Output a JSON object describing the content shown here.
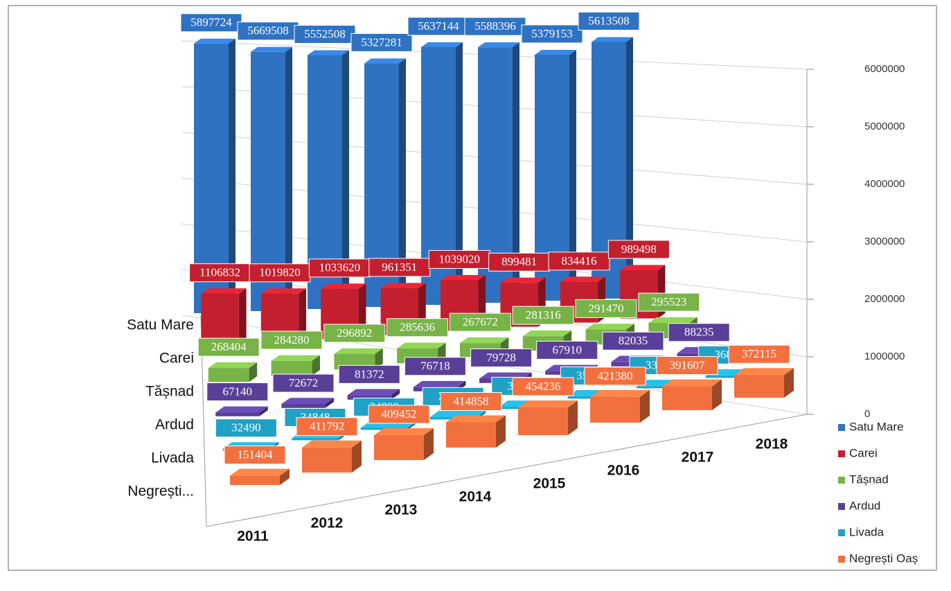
{
  "chart_data": {
    "type": "bar3d",
    "categories": [
      "2011",
      "2012",
      "2013",
      "2014",
      "2015",
      "2016",
      "2017",
      "2018"
    ],
    "depth_labels": [
      "Satu Mare",
      "Carei",
      "Tășnad",
      "Ardud",
      "Livada",
      "Negrești..."
    ],
    "series": [
      {
        "name": "Satu Mare",
        "color": "#2f72c2",
        "values": [
          5897724,
          5669508,
          5552508,
          5327281,
          5637144,
          5588396,
          5379153,
          5613508
        ]
      },
      {
        "name": "Carei",
        "color": "#c41f2e",
        "values": [
          1106832,
          1019820,
          1033620,
          961351,
          1039020,
          899481,
          834416,
          989498
        ]
      },
      {
        "name": "Tășnad",
        "color": "#77b347",
        "values": [
          268404,
          284280,
          296892,
          285636,
          267672,
          281316,
          291470,
          295523
        ]
      },
      {
        "name": "Ardud",
        "color": "#5a3f98",
        "values": [
          67140,
          72672,
          81372,
          76718,
          79728,
          67910,
          82035,
          88235
        ]
      },
      {
        "name": "Livada",
        "color": "#1fa2c6",
        "values": [
          32490,
          34848,
          34800,
          36794,
          35088,
          35230,
          33867,
          36820
        ]
      },
      {
        "name": "Negrești Oaș",
        "color": "#f2703e",
        "values": [
          151404,
          411792,
          409452,
          414858,
          454236,
          421380,
          391607,
          372115
        ]
      }
    ],
    "ylim": [
      0,
      6000000
    ],
    "yticks": [
      0,
      1000000,
      2000000,
      3000000,
      4000000,
      5000000,
      6000000
    ],
    "grid": true,
    "legend": "right"
  }
}
